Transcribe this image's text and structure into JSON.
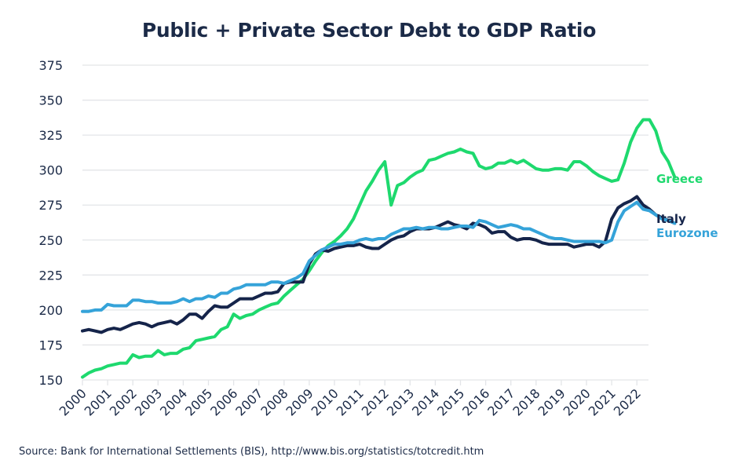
{
  "chart_data": {
    "type": "line",
    "title": "Public + Private Sector Debt to GDP Ratio",
    "xlabel": "",
    "ylabel": "",
    "ylim": [
      150,
      375
    ],
    "yticks": [
      150,
      175,
      200,
      225,
      250,
      275,
      300,
      325,
      350,
      375
    ],
    "xticks": [
      "2000",
      "2001",
      "2002",
      "2003",
      "2004",
      "2005",
      "2006",
      "2007",
      "2008",
      "2009",
      "2010",
      "2011",
      "2012",
      "2013",
      "2014",
      "2015",
      "2016",
      "2017",
      "2018",
      "2019",
      "2020",
      "2021",
      "2022"
    ],
    "x_start": 2000,
    "x_step": 0.25,
    "grid": "horizontal",
    "legend": "inline-right",
    "source": "Source: Bank for International Settlements (BIS), http://www.bis.org/statistics/totcredit.htm",
    "series": [
      {
        "name": "Greece",
        "color": "#1ed96e",
        "values": [
          152,
          155,
          157,
          158,
          160,
          161,
          162,
          162,
          168,
          166,
          167,
          167,
          171,
          168,
          169,
          169,
          172,
          173,
          178,
          179,
          180,
          181,
          186,
          188,
          197,
          194,
          196,
          197,
          200,
          202,
          204,
          205,
          210,
          214,
          218,
          222,
          228,
          235,
          241,
          246,
          249,
          253,
          258,
          265,
          275,
          285,
          292,
          300,
          306,
          275,
          289,
          291,
          295,
          298,
          300,
          307,
          308,
          310,
          312,
          313,
          315,
          313,
          312,
          303,
          301,
          302,
          305,
          305,
          307,
          305,
          307,
          304,
          301,
          300,
          300,
          301,
          301,
          300,
          306,
          306,
          303,
          299,
          296,
          294,
          292,
          293,
          305,
          320,
          330,
          336,
          336,
          328,
          313,
          306,
          295
        ],
        "label": "Greece"
      },
      {
        "name": "Italy",
        "color": "#15244a",
        "values": [
          185,
          186,
          185,
          184,
          186,
          187,
          186,
          188,
          190,
          191,
          190,
          188,
          190,
          191,
          192,
          190,
          193,
          197,
          197,
          194,
          199,
          203,
          202,
          202,
          205,
          208,
          208,
          208,
          210,
          212,
          212,
          213,
          219,
          220,
          220,
          220,
          233,
          240,
          243,
          242,
          244,
          245,
          246,
          246,
          247,
          245,
          244,
          244,
          247,
          250,
          252,
          253,
          256,
          258,
          258,
          258,
          259,
          261,
          263,
          261,
          260,
          258,
          262,
          261,
          259,
          255,
          256,
          256,
          252,
          250,
          251,
          251,
          250,
          248,
          247,
          247,
          247,
          247,
          245,
          246,
          247,
          247,
          245,
          249,
          265,
          273,
          276,
          278,
          281,
          275,
          272,
          268,
          266,
          264,
          262
        ],
        "label": "Italy"
      },
      {
        "name": "Eurozone",
        "color": "#35a3d9",
        "values": [
          199,
          199,
          200,
          200,
          204,
          203,
          203,
          203,
          207,
          207,
          206,
          206,
          205,
          205,
          205,
          206,
          208,
          206,
          208,
          208,
          210,
          209,
          212,
          212,
          215,
          216,
          218,
          218,
          218,
          218,
          220,
          220,
          219,
          221,
          223,
          226,
          235,
          239,
          243,
          245,
          247,
          247,
          248,
          248,
          250,
          251,
          250,
          251,
          251,
          254,
          256,
          258,
          258,
          259,
          258,
          259,
          259,
          258,
          258,
          259,
          260,
          260,
          259,
          264,
          263,
          261,
          259,
          260,
          261,
          260,
          258,
          258,
          256,
          254,
          252,
          251,
          251,
          250,
          249,
          249,
          249,
          249,
          249,
          248,
          250,
          263,
          271,
          274,
          277,
          272,
          271,
          268,
          265,
          264,
          262
        ],
        "label": "Eurozone"
      }
    ]
  }
}
